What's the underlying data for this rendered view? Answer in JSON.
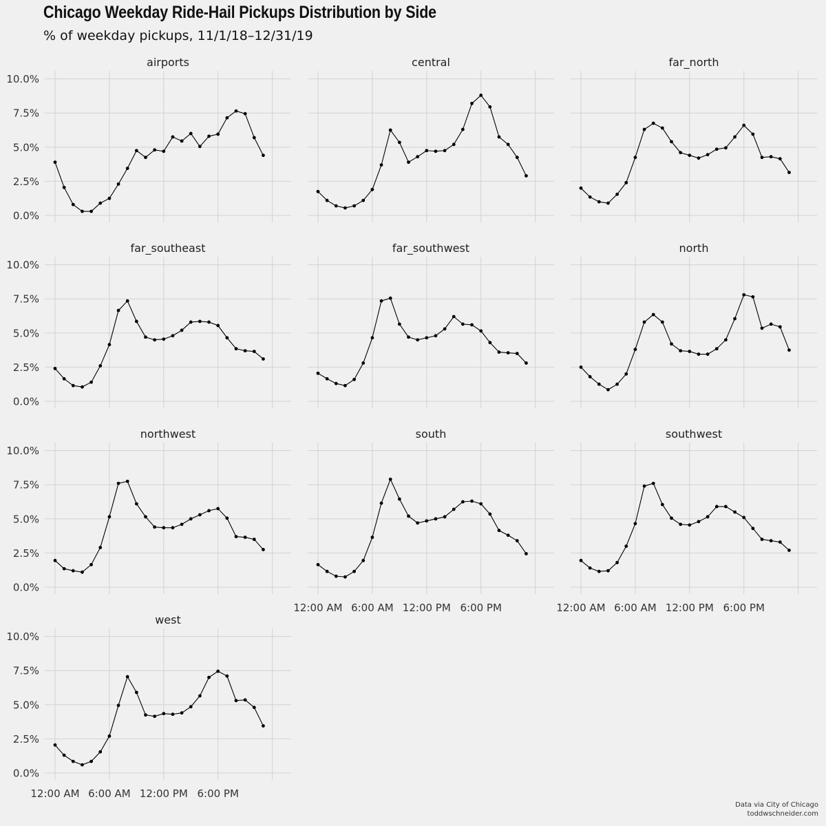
{
  "title": "Chicago Weekday Ride-Hail Pickups Distribution by Side",
  "subtitle": "% of weekday pickups, 11/1/18–12/31/19",
  "caption": {
    "line1": "Data via City of Chicago",
    "line2": "toddwschneider.com"
  },
  "colors": {
    "background": "#f0f0f0",
    "grid": "#d2d2d2",
    "line": "#000000",
    "text": "#333333"
  },
  "chart_data": {
    "type": "line",
    "layout": "small-multiples",
    "ylim": [
      0,
      10
    ],
    "y_ticks": [
      "0.0%",
      "2.5%",
      "5.0%",
      "7.5%",
      "10.0%"
    ],
    "y_tick_values": [
      0,
      2.5,
      5,
      7.5,
      10
    ],
    "x_ticks": [
      "12:00 AM",
      "6:00 AM",
      "12:00 PM",
      "6:00 PM"
    ],
    "x_tick_values": [
      0,
      6,
      12,
      18
    ],
    "x": [
      0,
      1,
      2,
      3,
      4,
      5,
      6,
      7,
      8,
      9,
      10,
      11,
      12,
      13,
      14,
      15,
      16,
      17,
      18,
      19,
      20,
      21,
      22,
      23
    ],
    "panels": [
      {
        "name": "airports",
        "values": [
          3.9,
          2.05,
          0.8,
          0.3,
          0.3,
          0.9,
          1.25,
          2.3,
          3.45,
          4.75,
          4.25,
          4.8,
          4.7,
          5.75,
          5.45,
          6.0,
          5.05,
          5.8,
          5.95,
          7.15,
          7.65,
          7.45,
          5.7,
          4.4
        ]
      },
      {
        "name": "central",
        "values": [
          1.75,
          1.1,
          0.7,
          0.55,
          0.7,
          1.1,
          1.9,
          3.7,
          6.25,
          5.35,
          3.9,
          4.3,
          4.75,
          4.7,
          4.75,
          5.2,
          6.3,
          8.2,
          8.8,
          7.95,
          5.75,
          5.2,
          4.25,
          2.9
        ]
      },
      {
        "name": "far_north",
        "values": [
          2.0,
          1.35,
          1.0,
          0.9,
          1.55,
          2.4,
          4.25,
          6.3,
          6.75,
          6.4,
          5.4,
          4.6,
          4.4,
          4.2,
          4.45,
          4.85,
          4.95,
          5.75,
          6.6,
          5.95,
          4.25,
          4.3,
          4.15,
          3.15
        ]
      },
      {
        "name": "far_southeast",
        "values": [
          2.4,
          1.65,
          1.15,
          1.05,
          1.4,
          2.6,
          4.15,
          6.65,
          7.35,
          5.85,
          4.7,
          4.5,
          4.55,
          4.8,
          5.2,
          5.8,
          5.85,
          5.8,
          5.55,
          4.65,
          3.85,
          3.7,
          3.65,
          3.1
        ]
      },
      {
        "name": "far_southwest",
        "values": [
          2.05,
          1.65,
          1.3,
          1.15,
          1.6,
          2.8,
          4.65,
          7.35,
          7.55,
          5.65,
          4.7,
          4.5,
          4.65,
          4.8,
          5.3,
          6.2,
          5.65,
          5.6,
          5.15,
          4.3,
          3.6,
          3.55,
          3.5,
          2.8
        ]
      },
      {
        "name": "north",
        "values": [
          2.5,
          1.8,
          1.25,
          0.85,
          1.25,
          2.0,
          3.8,
          5.8,
          6.35,
          5.8,
          4.2,
          3.7,
          3.65,
          3.45,
          3.45,
          3.85,
          4.5,
          6.05,
          7.8,
          7.65,
          5.35,
          5.65,
          5.45,
          3.75
        ]
      },
      {
        "name": "northwest",
        "values": [
          1.95,
          1.35,
          1.2,
          1.1,
          1.65,
          2.9,
          5.15,
          7.6,
          7.75,
          6.1,
          5.15,
          4.4,
          4.35,
          4.35,
          4.6,
          5.0,
          5.3,
          5.6,
          5.75,
          5.05,
          3.7,
          3.65,
          3.5,
          2.75
        ]
      },
      {
        "name": "south",
        "values": [
          1.65,
          1.15,
          0.8,
          0.75,
          1.15,
          1.95,
          3.65,
          6.15,
          7.9,
          6.45,
          5.2,
          4.7,
          4.85,
          5.0,
          5.15,
          5.7,
          6.25,
          6.3,
          6.1,
          5.35,
          4.15,
          3.8,
          3.4,
          2.45
        ]
      },
      {
        "name": "southwest",
        "values": [
          1.95,
          1.4,
          1.15,
          1.2,
          1.8,
          3.0,
          4.65,
          7.4,
          7.6,
          6.05,
          5.05,
          4.6,
          4.55,
          4.8,
          5.15,
          5.9,
          5.9,
          5.5,
          5.1,
          4.3,
          3.5,
          3.4,
          3.3,
          2.7
        ]
      },
      {
        "name": "west",
        "values": [
          2.05,
          1.3,
          0.85,
          0.6,
          0.85,
          1.55,
          2.7,
          4.95,
          7.05,
          5.9,
          4.25,
          4.15,
          4.35,
          4.3,
          4.4,
          4.85,
          5.65,
          7.0,
          7.45,
          7.1,
          5.3,
          5.35,
          4.8,
          3.45
        ]
      }
    ]
  }
}
